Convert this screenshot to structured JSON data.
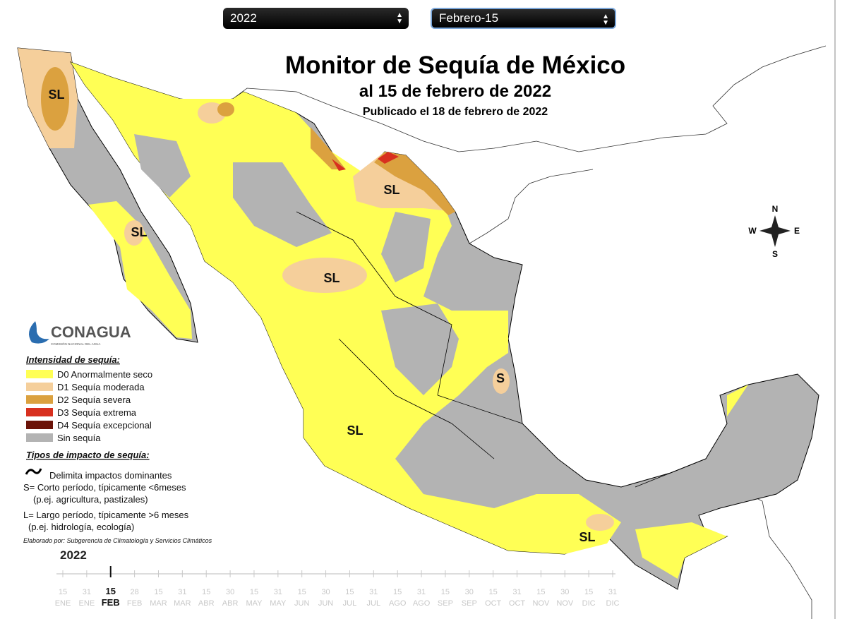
{
  "selectors": {
    "year": "2022",
    "date": "Febrero-15"
  },
  "header": {
    "title": "Monitor de Sequía de México",
    "subtitle": "al 15 de febrero de 2022",
    "published": "Publicado el 18 de febrero de 2022"
  },
  "map_labels": [
    "SL",
    "SL",
    "SL",
    "SL",
    "SL",
    "SL",
    "S"
  ],
  "compass": {
    "north": "N",
    "south": "S",
    "east": "E",
    "west": "W"
  },
  "logo": {
    "name": "CONAGUA",
    "tagline": "COMISIÓN NACIONAL DEL AGUA"
  },
  "legend": {
    "heading": "Intensidad de sequía:",
    "items": [
      {
        "label": "D0 Anormalmente seco",
        "color": "#ffff55"
      },
      {
        "label": "D1 Sequía moderada",
        "color": "#f5cf9b"
      },
      {
        "label": "D2 Sequía severa",
        "color": "#dba13f"
      },
      {
        "label": "D3 Sequía extrema",
        "color": "#d8301f"
      },
      {
        "label": "D4 Sequía excepcional",
        "color": "#6b1308"
      },
      {
        "label": "Sin sequía",
        "color": "#b3b3b3"
      }
    ]
  },
  "impacts": {
    "heading": "Tipos de impacto de sequía:",
    "lines": [
      "Delimita impactos dominantes",
      "S= Corto período, típicamente <6meses",
      "(p.ej. agricultura, pastizales)",
      "L= Largo período, típicamente >6 meses",
      "(p.ej. hidrología, ecología)"
    ]
  },
  "credit": "Elaborado por: Subgerencia de Climatología y Servicios Climáticos",
  "timeline": {
    "year": "2022",
    "active": 2,
    "ticks": [
      {
        "day": "15",
        "month": "ENE"
      },
      {
        "day": "31",
        "month": "ENE"
      },
      {
        "day": "15",
        "month": "FEB"
      },
      {
        "day": "28",
        "month": "FEB"
      },
      {
        "day": "15",
        "month": "MAR"
      },
      {
        "day": "31",
        "month": "MAR"
      },
      {
        "day": "15",
        "month": "ABR"
      },
      {
        "day": "30",
        "month": "ABR"
      },
      {
        "day": "15",
        "month": "MAY"
      },
      {
        "day": "31",
        "month": "MAY"
      },
      {
        "day": "15",
        "month": "JUN"
      },
      {
        "day": "30",
        "month": "JUN"
      },
      {
        "day": "15",
        "month": "JUL"
      },
      {
        "day": "31",
        "month": "JUL"
      },
      {
        "day": "15",
        "month": "AGO"
      },
      {
        "day": "31",
        "month": "AGO"
      },
      {
        "day": "15",
        "month": "SEP"
      },
      {
        "day": "30",
        "month": "SEP"
      },
      {
        "day": "15",
        "month": "OCT"
      },
      {
        "day": "31",
        "month": "OCT"
      },
      {
        "day": "15",
        "month": "NOV"
      },
      {
        "day": "30",
        "month": "NOV"
      },
      {
        "day": "15",
        "month": "DIC"
      },
      {
        "day": "31",
        "month": "DIC"
      }
    ]
  }
}
